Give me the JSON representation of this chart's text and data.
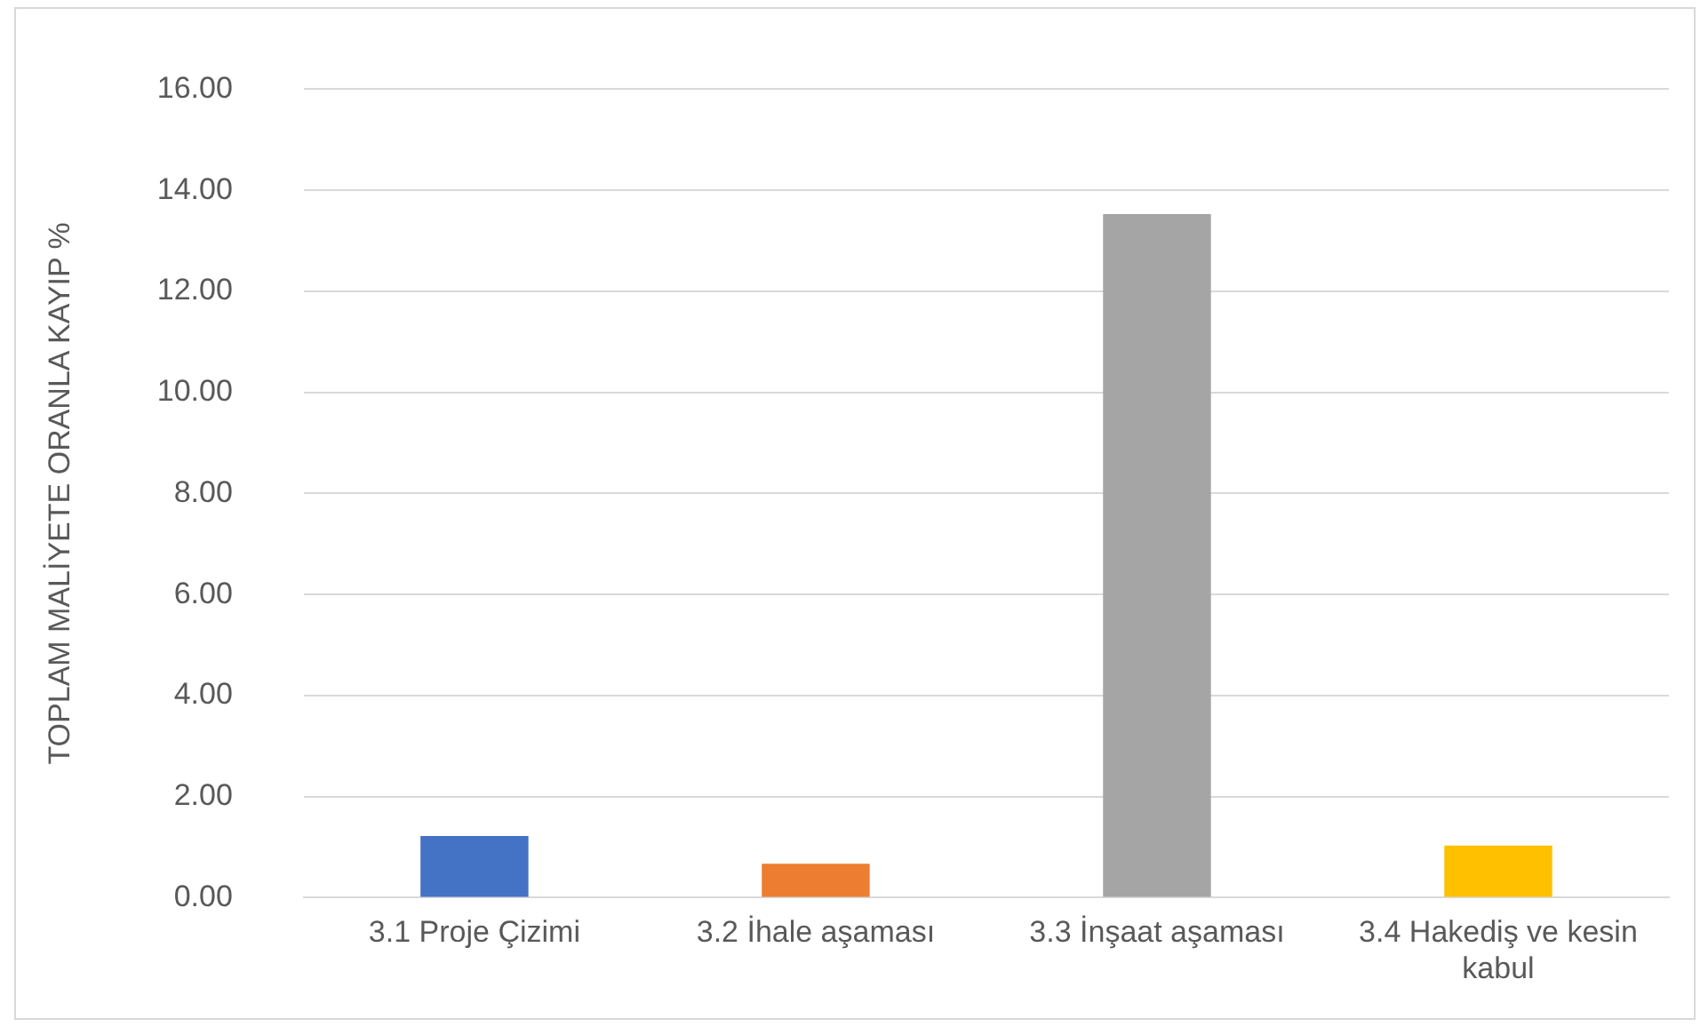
{
  "chart_data": {
    "type": "bar",
    "ylabel": "TOPLAM MALİYETE ORANLA KAYIP %",
    "categories": [
      "3.1 Proje Çizimi",
      "3.2 İhale aşaması",
      "3.3 İnşaat aşaması",
      "3.4 Hakediş ve kesin kabul"
    ],
    "values": [
      1.22,
      0.67,
      13.53,
      1.03
    ],
    "colors": [
      "#4472c4",
      "#ed7d31",
      "#a5a5a5",
      "#ffc000"
    ],
    "ylim": [
      0,
      16
    ],
    "yticks": [
      {
        "value": 0,
        "label": "0.00"
      },
      {
        "value": 2,
        "label": "2.00"
      },
      {
        "value": 4,
        "label": "4.00"
      },
      {
        "value": 6,
        "label": "6.00"
      },
      {
        "value": 8,
        "label": "8.00"
      },
      {
        "value": 10,
        "label": "10.00"
      },
      {
        "value": 12,
        "label": "12.00"
      },
      {
        "value": 14,
        "label": "14.00"
      },
      {
        "value": 16,
        "label": "16.00"
      }
    ],
    "grid": "y"
  }
}
